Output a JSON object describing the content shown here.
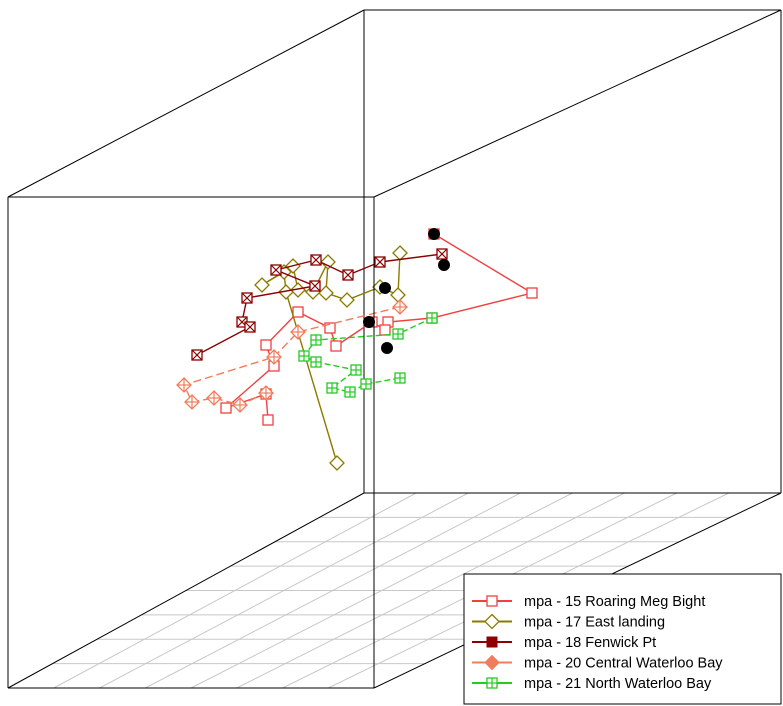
{
  "chart_data": {
    "type": "scatter",
    "title": "",
    "xlabel": "",
    "ylabel": "",
    "zlabel": "",
    "grid": "floor only",
    "legend_position": "bottom-right",
    "series": [
      {
        "name": "mpa - 15 Roaring Meg Bight",
        "color": "#f04040",
        "marker": "open-square",
        "points": [
          [
            434,
            234
          ],
          [
            532,
            293
          ],
          [
            432,
            318
          ],
          [
            388,
            322
          ],
          [
            385,
            330
          ],
          [
            372,
            322
          ],
          [
            336,
            346
          ],
          [
            330,
            328
          ],
          [
            298,
            312
          ],
          [
            266,
            345
          ],
          [
            274,
            366
          ],
          [
            226,
            408
          ],
          [
            266,
            394
          ],
          [
            268,
            420
          ]
        ]
      },
      {
        "name": "mpa - 17 East landing",
        "color": "#8b7a00",
        "marker": "open-diamond",
        "points": [
          [
            400,
            253
          ],
          [
            398,
            295
          ],
          [
            380,
            287
          ],
          [
            347,
            300
          ],
          [
            326,
            293
          ],
          [
            328,
            262
          ],
          [
            313,
            292
          ],
          [
            298,
            290
          ],
          [
            293,
            266
          ],
          [
            262,
            285
          ],
          [
            284,
            272
          ],
          [
            286,
            292
          ],
          [
            337,
            463
          ]
        ]
      },
      {
        "name": "mpa - 18 Fenwick Pt",
        "color": "#8b0000",
        "marker": "x-square",
        "points": [
          [
            442,
            254
          ],
          [
            380,
            262
          ],
          [
            348,
            275
          ],
          [
            316,
            260
          ],
          [
            276,
            270
          ],
          [
            315,
            286
          ],
          [
            247,
            298
          ],
          [
            242,
            322
          ],
          [
            250,
            327
          ],
          [
            197,
            355
          ]
        ]
      },
      {
        "name": "mpa - 20 Central Waterloo Bay",
        "color": "#f07c5c",
        "marker": "plus-diamond",
        "points": [
          [
            400,
            307
          ],
          [
            298,
            332
          ],
          [
            274,
            357
          ],
          [
            184,
            385
          ],
          [
            192,
            402
          ],
          [
            214,
            398
          ],
          [
            240,
            405
          ],
          [
            266,
            393
          ]
        ]
      },
      {
        "name": "mpa - 21 North Waterloo Bay",
        "color": "#22cc22",
        "marker": "plus-square",
        "points": [
          [
            432,
            318
          ],
          [
            398,
            334
          ],
          [
            316,
            340
          ],
          [
            304,
            356
          ],
          [
            316,
            362
          ],
          [
            356,
            370
          ],
          [
            332,
            388
          ],
          [
            350,
            392
          ],
          [
            366,
            384
          ],
          [
            400,
            378
          ]
        ]
      },
      {
        "name": "",
        "color": "#000000",
        "marker": "filled-circle",
        "points": [
          [
            434,
            234
          ],
          [
            444,
            265
          ],
          [
            385,
            288
          ],
          [
            369,
            322
          ],
          [
            387,
            348
          ]
        ]
      }
    ]
  }
}
